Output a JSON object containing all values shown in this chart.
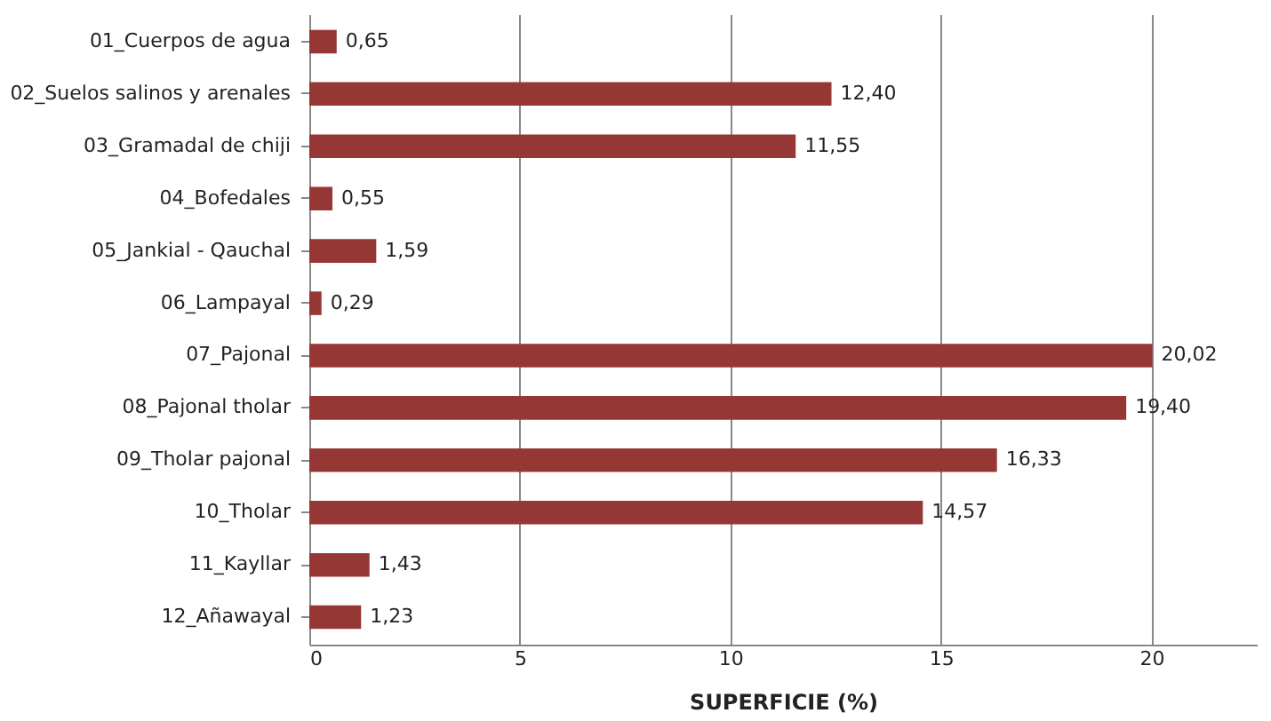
{
  "chart_data": {
    "type": "bar",
    "orientation": "horizontal",
    "xlabel": "SUPERFICIE (%)",
    "categories": [
      "01_Cuerpos de agua",
      "02_Suelos salinos y arenales",
      "03_Gramadal de chiji",
      "04_Bofedales",
      "05_Jankial - Qauchal",
      "06_Lampayal",
      "07_Pajonal",
      "08_Pajonal tholar",
      "09_Tholar pajonal",
      "10_Tholar",
      "11_Kayllar",
      "12_Añawayal"
    ],
    "values": [
      0.65,
      12.4,
      11.55,
      0.55,
      1.59,
      0.29,
      20.02,
      19.4,
      16.33,
      14.57,
      1.43,
      1.23
    ],
    "value_labels": [
      "0,65",
      "12,40",
      "11,55",
      "0,55",
      "1,59",
      "0,29",
      "20,02",
      "19,40",
      "16,33",
      "14,57",
      "1,43",
      "1,23"
    ],
    "color": "#953735",
    "xlim": [
      0,
      22.5
    ],
    "xticks": [
      0,
      5,
      10,
      15,
      20
    ],
    "grid": "x"
  }
}
